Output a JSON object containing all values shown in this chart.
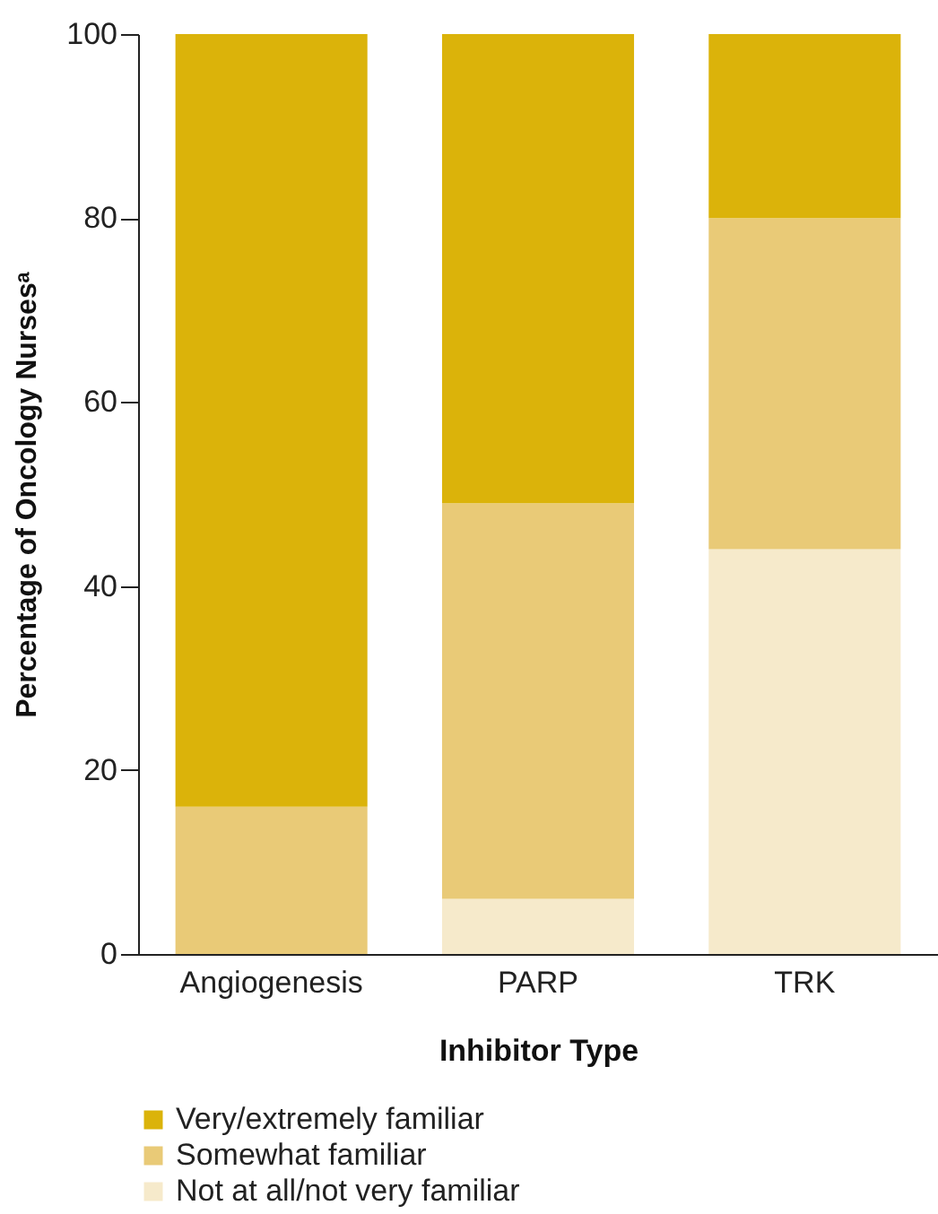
{
  "chart_data": {
    "type": "bar",
    "stacked": true,
    "xlabel": "Inhibitor Type",
    "ylabel": "Percentage of Oncology Nursesᵃ",
    "categories": [
      "Angiogenesis",
      "PARP",
      "TRK"
    ],
    "series": [
      {
        "name": "Not at all/not very familiar",
        "color": "#f6eacb",
        "values": [
          0,
          6,
          44
        ]
      },
      {
        "name": "Somewhat familiar",
        "color": "#e9ca77",
        "values": [
          16,
          43,
          36
        ]
      },
      {
        "name": "Very/extremely familiar",
        "color": "#dbb30a",
        "values": [
          84,
          51,
          20
        ]
      }
    ],
    "ylim": [
      0,
      100
    ],
    "yticks": [
      0,
      20,
      40,
      60,
      80,
      100
    ],
    "grid": false,
    "legend": "bottom"
  }
}
